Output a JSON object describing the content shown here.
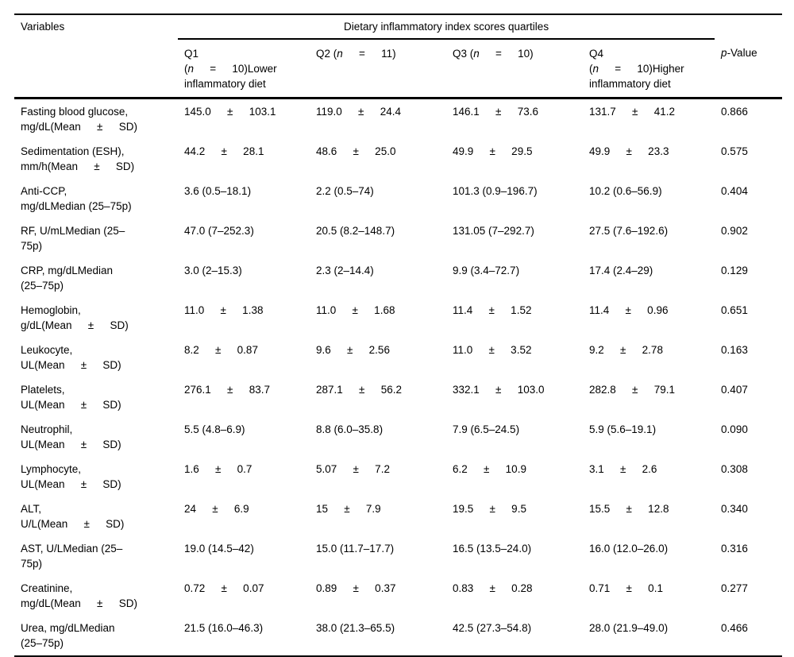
{
  "table": {
    "header": {
      "variables": "Variables",
      "span_header": "Dietary inflammatory index scores quartiles",
      "q1": [
        {
          "t": "Q1\n("
        },
        {
          "t": "n",
          "i": true
        },
        {
          "t": "  =  10)Lower\ninflammatory diet"
        }
      ],
      "q2": [
        {
          "t": "Q2 ("
        },
        {
          "t": "n",
          "i": true
        },
        {
          "t": "  =  11)"
        }
      ],
      "q3": [
        {
          "t": "Q3 ("
        },
        {
          "t": "n",
          "i": true
        },
        {
          "t": "  =  10)"
        }
      ],
      "q4": [
        {
          "t": "Q4\n("
        },
        {
          "t": "n",
          "i": true
        },
        {
          "t": "  =  10)Higher\ninflammatory diet"
        }
      ],
      "p_value": [
        {
          "t": "p",
          "i": true
        },
        {
          "t": "-Value"
        }
      ]
    },
    "rows": [
      {
        "variable": "Fasting blood glucose,\nmg/dL(Mean  ±  SD)",
        "q1": "145.0  ±  103.1",
        "q2": "119.0  ±  24.4",
        "q3": "146.1  ±  73.6",
        "q4": "131.7  ±  41.2",
        "p": "0.866"
      },
      {
        "variable": "Sedimentation (ESH),\nmm/h(Mean  ±  SD)",
        "q1": "44.2  ±  28.1",
        "q2": "48.6  ±  25.0",
        "q3": "49.9  ±  29.5",
        "q4": "49.9  ±  23.3",
        "p": "0.575"
      },
      {
        "variable": "Anti-CCP,\nmg/dLMedian (25–75p)",
        "q1": "3.6 (0.5–18.1)",
        "q2": "2.2 (0.5–74)",
        "q3": "101.3 (0.9–196.7)",
        "q4": "10.2 (0.6–56.9)",
        "p": "0.404"
      },
      {
        "variable": "RF, U/mLMedian (25–\n75p)",
        "q1": "47.0 (7–252.3)",
        "q2": "20.5 (8.2–148.7)",
        "q3": "131.05 (7–292.7)",
        "q4": "27.5 (7.6–192.6)",
        "p": "0.902"
      },
      {
        "variable": "CRP, mg/dLMedian\n(25–75p)",
        "q1": "3.0 (2–15.3)",
        "q2": "2.3 (2–14.4)",
        "q3": "9.9 (3.4–72.7)",
        "q4": "17.4 (2.4–29)",
        "p": "0.129"
      },
      {
        "variable": "Hemoglobin,\ng/dL(Mean  ±  SD)",
        "q1": "11.0  ±  1.38",
        "q2": "11.0  ±  1.68",
        "q3": "11.4  ±  1.52",
        "q4": "11.4  ±  0.96",
        "p": "0.651"
      },
      {
        "variable": "Leukocyte,\nUL(Mean  ±  SD)",
        "q1": "8.2  ±  0.87",
        "q2": "9.6  ±  2.56",
        "q3": "11.0  ±  3.52",
        "q4": "9.2  ±  2.78",
        "p": "0.163"
      },
      {
        "variable": "Platelets,\nUL(Mean  ±  SD)",
        "q1": "276.1  ±  83.7",
        "q2": "287.1  ±  56.2",
        "q3": "332.1  ±  103.0",
        "q4": "282.8  ±  79.1",
        "p": "0.407"
      },
      {
        "variable": "Neutrophil,\nUL(Mean  ±  SD)",
        "q1": "5.5 (4.8–6.9)",
        "q2": "8.8 (6.0–35.8)",
        "q3": "7.9 (6.5–24.5)",
        "q4": "5.9 (5.6–19.1)",
        "p": "0.090"
      },
      {
        "variable": "Lymphocyte,\nUL(Mean  ±  SD)",
        "q1": "1.6  ±  0.7",
        "q2": "5.07  ±  7.2",
        "q3": "6.2  ±  10.9",
        "q4": "3.1  ±  2.6",
        "p": "0.308"
      },
      {
        "variable": "ALT,\nU/L(Mean  ±  SD)",
        "q1": "24  ±  6.9",
        "q2": "15  ±  7.9",
        "q3": "19.5  ±  9.5",
        "q4": "15.5  ±  12.8",
        "p": "0.340"
      },
      {
        "variable": "AST, U/LMedian (25–\n75p)",
        "q1": "19.0 (14.5–42)",
        "q2": "15.0 (11.7–17.7)",
        "q3": "16.5 (13.5–24.0)",
        "q4": "16.0 (12.0–26.0)",
        "p": "0.316"
      },
      {
        "variable": "Creatinine,\nmg/dL(Mean  ±  SD)",
        "q1": "0.72  ±  0.07",
        "q2": "0.89  ±  0.37",
        "q3": "0.83  ±　 0.28",
        "q4": "0.71  ±  0.1",
        "p": "0.277"
      },
      {
        "variable": "Urea, mg/dLMedian\n(25–75p)",
        "q1": "21.5 (16.0–46.3)",
        "q2": "38.0 (21.3–65.5)",
        "q3": "42.5 (27.3–54.8)",
        "q4": "28.0 (21.9–49.0)",
        "p": "0.466"
      }
    ]
  }
}
